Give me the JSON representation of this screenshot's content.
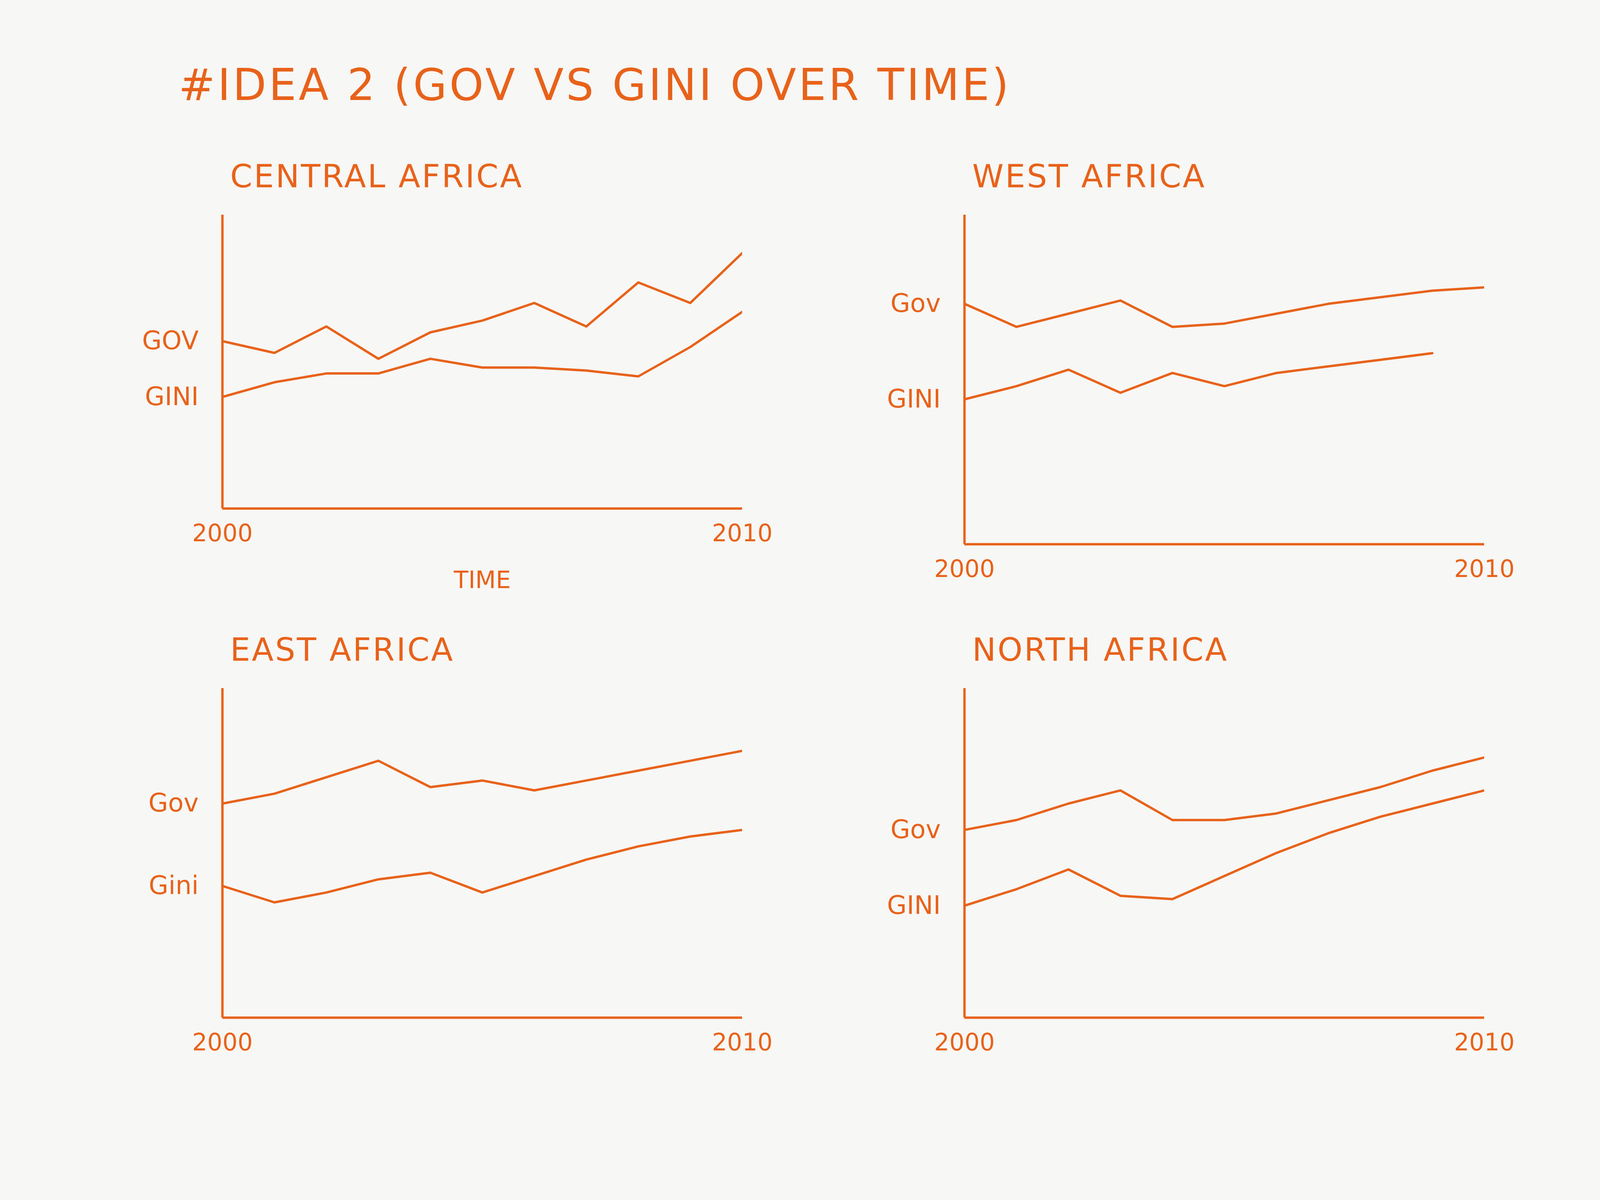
{
  "title": "#IDEA 2 (GOV VS GINI OVER TIME)",
  "chart_data": [
    {
      "type": "line",
      "title": "CENTRAL AFRICA",
      "xlabel": "TIME",
      "x": [
        2000,
        2001,
        2002,
        2003,
        2004,
        2005,
        2006,
        2007,
        2008,
        2009,
        2010
      ],
      "xlim": [
        2000,
        2010
      ],
      "xticks": [
        2000,
        2010
      ],
      "ylim": [
        0,
        10
      ],
      "tick_labels": "x",
      "color": "#e8621a",
      "series": [
        {
          "name": "GOV",
          "values": [
            5.7,
            5.3,
            6.2,
            5.1,
            6.0,
            6.4,
            7.0,
            6.2,
            7.7,
            7.0,
            8.7
          ]
        },
        {
          "name": "GINI",
          "values": [
            3.8,
            4.3,
            4.6,
            4.6,
            5.1,
            4.8,
            4.8,
            4.7,
            4.5,
            5.5,
            6.7
          ]
        }
      ]
    },
    {
      "type": "line",
      "title": "WEST AFRICA",
      "x": [
        2000,
        2001,
        2002,
        2003,
        2004,
        2005,
        2006,
        2007,
        2008,
        2009,
        2010
      ],
      "xlim": [
        2000,
        2010
      ],
      "xticks": [
        2000,
        2010
      ],
      "ylim": [
        0,
        10
      ],
      "tick_labels": "x",
      "color": "#e8621a",
      "series": [
        {
          "name": "Gov",
          "values": [
            7.3,
            6.6,
            7.0,
            7.4,
            6.6,
            6.7,
            7.0,
            7.3,
            7.5,
            7.7,
            7.8
          ]
        },
        {
          "name": "GINI",
          "values": [
            4.4,
            4.8,
            5.3,
            4.6,
            5.2,
            4.8,
            5.2,
            5.4,
            5.6,
            5.8,
            null
          ]
        }
      ]
    },
    {
      "type": "line",
      "title": "EAST AFRICA",
      "x": [
        2000,
        2001,
        2002,
        2003,
        2004,
        2005,
        2006,
        2007,
        2008,
        2009,
        2010
      ],
      "xlim": [
        2000,
        2010
      ],
      "xticks": [
        2000,
        2010
      ],
      "ylim": [
        0,
        10
      ],
      "tick_labels": "x",
      "color": "#e8621a",
      "series": [
        {
          "name": "Gov",
          "values": [
            6.5,
            6.8,
            7.3,
            7.8,
            7.0,
            7.2,
            6.9,
            7.2,
            7.5,
            7.8,
            8.1
          ]
        },
        {
          "name": "Gini",
          "values": [
            4.0,
            3.5,
            3.8,
            4.2,
            4.4,
            3.8,
            4.3,
            4.8,
            5.2,
            5.5,
            5.7
          ]
        }
      ]
    },
    {
      "type": "line",
      "title": "NORTH AFRICA",
      "x": [
        2000,
        2001,
        2002,
        2003,
        2004,
        2005,
        2006,
        2007,
        2008,
        2009,
        2010
      ],
      "xlim": [
        2000,
        2010
      ],
      "xticks": [
        2000,
        2010
      ],
      "ylim": [
        0,
        10
      ],
      "tick_labels": "x",
      "color": "#e8621a",
      "series": [
        {
          "name": "Gov",
          "values": [
            5.7,
            6.0,
            6.5,
            6.9,
            6.0,
            6.0,
            6.2,
            6.6,
            7.0,
            7.5,
            7.9
          ]
        },
        {
          "name": "GINI",
          "values": [
            3.4,
            3.9,
            4.5,
            3.7,
            3.6,
            4.3,
            5.0,
            5.6,
            6.1,
            6.5,
            6.9
          ]
        }
      ]
    }
  ]
}
